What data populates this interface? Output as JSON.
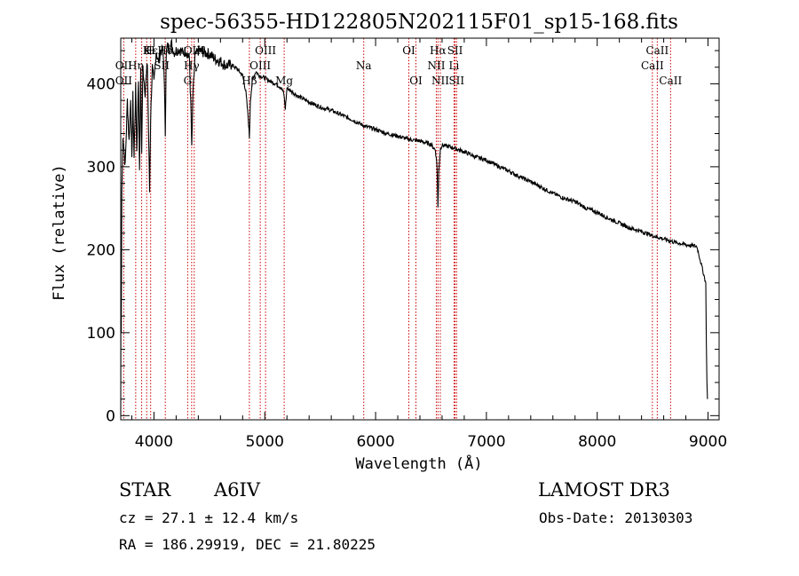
{
  "chart_data": {
    "type": "line",
    "title": "spec-56355-HD122805N202115F01_sp15-168.fits",
    "xlabel": "Wavelength (Å)",
    "ylabel": "Flux (relative)",
    "xlim": [
      3700,
      9100
    ],
    "ylim": [
      -5,
      455
    ],
    "xticks": [
      4000,
      5000,
      6000,
      7000,
      8000,
      9000
    ],
    "yticks": [
      0,
      100,
      200,
      300,
      400
    ],
    "series": [
      {
        "name": "spectrum",
        "x": [
          3700,
          3702,
          3705,
          3710,
          3720,
          3740,
          3760,
          3775,
          3790,
          3800,
          3810,
          3820,
          3835,
          3845,
          3860,
          3870,
          3880,
          3889,
          3900,
          3920,
          3940,
          3960,
          3970,
          3985,
          4000,
          4020,
          4040,
          4060,
          4080,
          4090,
          4102,
          4110,
          4120,
          4140,
          4160,
          4180,
          4200,
          4230,
          4260,
          4290,
          4320,
          4335,
          4341,
          4350,
          4370,
          4400,
          4450,
          4500,
          4550,
          4600,
          4650,
          4700,
          4750,
          4800,
          4830,
          4850,
          4861,
          4870,
          4890,
          4920,
          4950,
          5000,
          5050,
          5100,
          5150,
          5172,
          5185,
          5200,
          5300,
          5400,
          5500,
          5600,
          5700,
          5800,
          5900,
          6000,
          6100,
          6200,
          6300,
          6400,
          6500,
          6540,
          6555,
          6563,
          6570,
          6585,
          6600,
          6700,
          6800,
          6900,
          7000,
          7100,
          7200,
          7300,
          7400,
          7500,
          7600,
          7700,
          7800,
          7900,
          8000,
          8100,
          8200,
          8300,
          8400,
          8500,
          8600,
          8700,
          8800,
          8900,
          8980,
          8985,
          8990,
          8995
        ],
        "y": [
          0,
          140,
          100,
          270,
          340,
          300,
          380,
          330,
          385,
          305,
          385,
          310,
          395,
          318,
          405,
          290,
          420,
          315,
          420,
          390,
          425,
          270,
          360,
          420,
          400,
          440,
          425,
          440,
          440,
          420,
          340,
          435,
          445,
          443,
          448,
          438,
          440,
          442,
          437,
          440,
          430,
          360,
          320,
          380,
          432,
          440,
          438,
          436,
          430,
          427,
          422,
          423,
          418,
          410,
          390,
          360,
          335,
          380,
          405,
          415,
          410,
          407,
          403,
          400,
          395,
          388,
          370,
          395,
          385,
          378,
          372,
          368,
          362,
          356,
          349,
          345,
          340,
          337,
          333,
          331,
          327,
          320,
          300,
          250,
          295,
          322,
          326,
          323,
          318,
          312,
          308,
          301,
          295,
          288,
          282,
          275,
          268,
          262,
          258,
          250,
          245,
          238,
          232,
          226,
          222,
          217,
          213,
          209,
          206,
          204,
          160,
          90,
          40,
          20
        ]
      }
    ],
    "line_labels": [
      {
        "text": "Hε",
        "x": 3970,
        "row": 1
      },
      {
        "text": "K",
        "x": 3934,
        "row": 1
      },
      {
        "text": "H",
        "x": 3969,
        "row": 1
      },
      {
        "text": "Hδ",
        "x": 4102,
        "row": 1
      },
      {
        "text": "OII",
        "x": 3727,
        "row": 2
      },
      {
        "text": "OII",
        "x": 3727,
        "row": 3
      },
      {
        "text": "Hη",
        "x": 3835,
        "row": 2
      },
      {
        "text": "Hγ",
        "x": 4340,
        "row": 2
      },
      {
        "text": "SII",
        "x": 4070,
        "row": 2
      },
      {
        "text": "Hβ",
        "x": 4861,
        "row": 3
      },
      {
        "text": "OIII",
        "x": 4363,
        "row": 1
      },
      {
        "text": "G",
        "x": 4304,
        "row": 3
      },
      {
        "text": "OIII",
        "x": 5007,
        "row": 1
      },
      {
        "text": "OIII",
        "x": 4959,
        "row": 2
      },
      {
        "text": "Mg",
        "x": 5175,
        "row": 3
      },
      {
        "text": "Na",
        "x": 5893,
        "row": 2
      },
      {
        "text": "OI",
        "x": 6300,
        "row": 1
      },
      {
        "text": "OI",
        "x": 6364,
        "row": 3
      },
      {
        "text": "Hα",
        "x": 6563,
        "row": 1
      },
      {
        "text": "SII",
        "x": 6717,
        "row": 1
      },
      {
        "text": "NII",
        "x": 6548,
        "row": 2
      },
      {
        "text": "Li",
        "x": 6708,
        "row": 2
      },
      {
        "text": "NII",
        "x": 6584,
        "row": 3
      },
      {
        "text": "SII",
        "x": 6731,
        "row": 3
      },
      {
        "text": "CaII",
        "x": 8542,
        "row": 1
      },
      {
        "text": "CaII",
        "x": 8498,
        "row": 2
      },
      {
        "text": "CaII",
        "x": 8662,
        "row": 3
      }
    ],
    "line_markers": [
      3727,
      3835,
      3889,
      3934,
      3970,
      4102,
      4304,
      4340,
      4363,
      4861,
      4959,
      5007,
      5175,
      5893,
      6300,
      6364,
      6548,
      6563,
      6584,
      6708,
      6717,
      6731,
      8498,
      8542,
      8662
    ]
  },
  "info": {
    "object_class": "STAR",
    "subclass": "A6IV",
    "survey": "LAMOST DR3",
    "cz": "cz = 27.1 ± 12.4 km/s",
    "obs_date": "Obs-Date: 20130303",
    "coords": "RA = 186.29919, DEC =  21.80225"
  },
  "colors": {
    "line_marker": "#cc0000",
    "spectrum": "#000000"
  }
}
